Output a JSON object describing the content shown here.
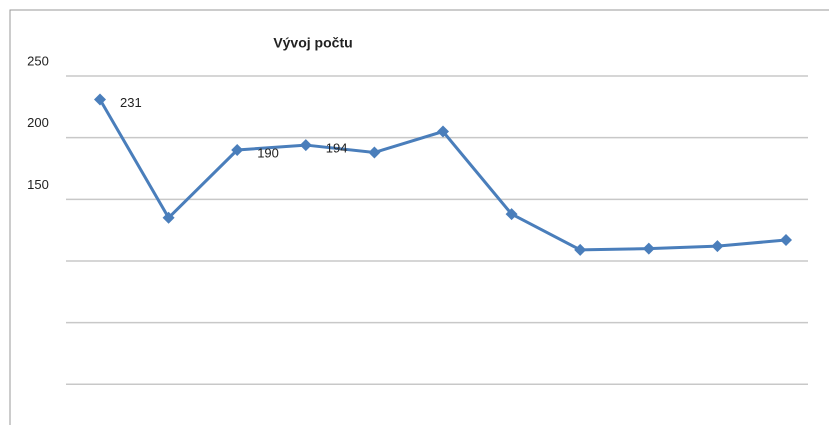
{
  "chart_data": {
    "type": "line",
    "title": "Vývoj počtu",
    "categories": [
      null,
      null,
      null,
      null,
      null,
      null,
      null,
      null,
      null,
      null,
      null
    ],
    "series": [
      {
        "name": null,
        "color": "#4a7ebb",
        "values": [
          231,
          135,
          190,
          194,
          188,
          205,
          138,
          109,
          110,
          112,
          117
        ],
        "value_labels": [
          "231",
          null,
          "190",
          "194",
          null,
          null,
          null,
          null,
          null,
          null,
          null
        ]
      }
    ],
    "ylim": [
      -29,
      263
    ],
    "yticks": [
      {
        "value": 0,
        "label": null
      },
      {
        "value": 50,
        "label": null
      },
      {
        "value": 100,
        "label": null
      },
      150,
      200,
      250
    ],
    "grid": true
  }
}
